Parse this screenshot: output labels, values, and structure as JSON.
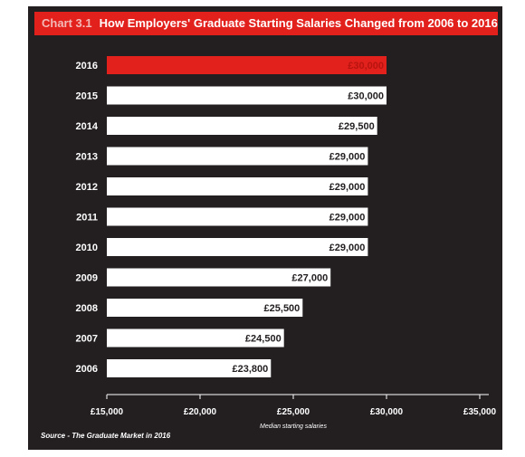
{
  "chart_data": {
    "type": "bar",
    "orientation": "horizontal",
    "title_label": "Chart 3.1",
    "title": "How Employers' Graduate Starting Salaries Changed from 2006 to 2016",
    "xlabel": "Median starting salaries",
    "ylabel": "",
    "categories": [
      "2016",
      "2015",
      "2014",
      "2013",
      "2012",
      "2011",
      "2010",
      "2009",
      "2008",
      "2007",
      "2006"
    ],
    "values": [
      30000,
      30000,
      29500,
      29000,
      29000,
      29000,
      29000,
      27000,
      25500,
      24500,
      23800
    ],
    "value_labels": [
      "£30,000",
      "£30,000",
      "£29,500",
      "£29,000",
      "£29,000",
      "£29,000",
      "£29,000",
      "£27,000",
      "£25,500",
      "£24,500",
      "£23,800"
    ],
    "xlim": [
      15000,
      35000
    ],
    "xticks": [
      15000,
      20000,
      25000,
      30000,
      35000
    ],
    "xtick_labels": [
      "£15,000",
      "£20,000",
      "£25,000",
      "£30,000",
      "£35,000"
    ],
    "highlight_index": 0,
    "grid": false,
    "legend": "none",
    "source": "Source - The Graduate Market in 2016",
    "colors": {
      "background": "#231f20",
      "bar": "#ffffff",
      "highlight": "#e2211c",
      "title_bar": "#e2211c",
      "text": "#ffffff"
    }
  }
}
